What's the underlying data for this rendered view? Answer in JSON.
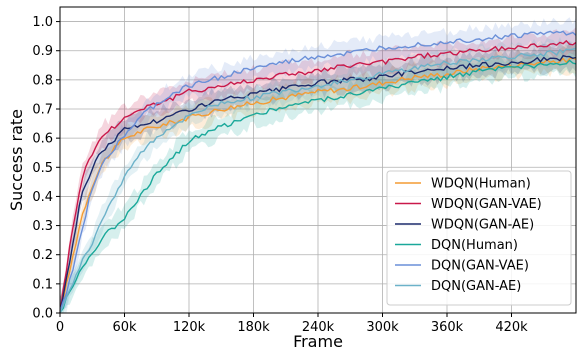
{
  "chart_data": {
    "type": "line",
    "title": "",
    "xlabel": "Frame",
    "ylabel": "Success rate",
    "xlim": [
      0,
      480000
    ],
    "ylim": [
      0,
      1.05
    ],
    "grid": true,
    "legend_position": "bottom-right",
    "x_ticks": [
      0,
      60000,
      120000,
      180000,
      240000,
      300000,
      360000,
      420000
    ],
    "x_tick_labels": [
      "0",
      "60k",
      "120k",
      "180k",
      "240k",
      "300k",
      "360k",
      "420k"
    ],
    "y_ticks": [
      0.0,
      0.1,
      0.2,
      0.3,
      0.4,
      0.5,
      0.6,
      0.7,
      0.8,
      0.9,
      1.0
    ],
    "y_tick_labels": [
      "0.0",
      "0.1",
      "0.2",
      "0.3",
      "0.4",
      "0.5",
      "0.6",
      "0.7",
      "0.8",
      "0.9",
      "1.0"
    ],
    "x": [
      0,
      10000,
      20000,
      30000,
      40000,
      60000,
      80000,
      100000,
      120000,
      150000,
      180000,
      210000,
      240000,
      270000,
      300000,
      330000,
      360000,
      390000,
      420000,
      450000,
      480000
    ],
    "series": [
      {
        "name": "WDQN(Human)",
        "color": "#f39c34",
        "values": [
          0.0,
          0.16,
          0.33,
          0.44,
          0.52,
          0.6,
          0.63,
          0.65,
          0.67,
          0.7,
          0.72,
          0.74,
          0.76,
          0.77,
          0.79,
          0.81,
          0.82,
          0.84,
          0.85,
          0.86,
          0.87
        ]
      },
      {
        "name": "WDQN(GAN-VAE)",
        "color": "#c9184a",
        "values": [
          0.0,
          0.25,
          0.46,
          0.55,
          0.61,
          0.67,
          0.71,
          0.73,
          0.76,
          0.78,
          0.8,
          0.82,
          0.83,
          0.85,
          0.86,
          0.88,
          0.89,
          0.9,
          0.91,
          0.92,
          0.93
        ]
      },
      {
        "name": "WDQN(GAN-AE)",
        "color": "#1b2a6b",
        "values": [
          0.0,
          0.2,
          0.4,
          0.5,
          0.56,
          0.63,
          0.65,
          0.67,
          0.7,
          0.73,
          0.75,
          0.77,
          0.79,
          0.8,
          0.81,
          0.83,
          0.84,
          0.85,
          0.86,
          0.87,
          0.88
        ]
      },
      {
        "name": "DQN(Human)",
        "color": "#1aa89a",
        "values": [
          0.0,
          0.08,
          0.15,
          0.21,
          0.26,
          0.33,
          0.43,
          0.52,
          0.59,
          0.64,
          0.68,
          0.71,
          0.73,
          0.75,
          0.77,
          0.79,
          0.81,
          0.83,
          0.84,
          0.85,
          0.86
        ]
      },
      {
        "name": "DQN(GAN-VAE)",
        "color": "#6a8fd8",
        "values": [
          0.0,
          0.12,
          0.28,
          0.43,
          0.52,
          0.61,
          0.69,
          0.74,
          0.78,
          0.81,
          0.84,
          0.86,
          0.88,
          0.89,
          0.91,
          0.92,
          0.93,
          0.94,
          0.95,
          0.96,
          0.96
        ]
      },
      {
        "name": "DQN(GAN-AE)",
        "color": "#6cb2c9",
        "values": [
          0.0,
          0.09,
          0.17,
          0.24,
          0.33,
          0.47,
          0.57,
          0.63,
          0.68,
          0.72,
          0.74,
          0.76,
          0.78,
          0.8,
          0.82,
          0.84,
          0.86,
          0.87,
          0.88,
          0.89,
          0.9
        ]
      }
    ]
  }
}
